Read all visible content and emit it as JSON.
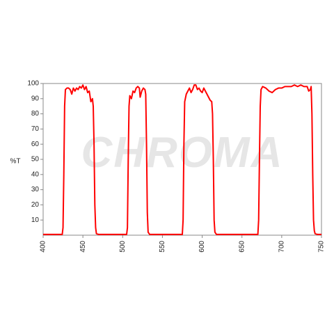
{
  "chart_data": {
    "type": "line",
    "y_label": "%T",
    "watermark": "CHROMA",
    "color": "#ff0000",
    "grid": false,
    "xlim": [
      400,
      750
    ],
    "xticks": [
      400,
      450,
      500,
      550,
      600,
      650,
      700,
      750
    ],
    "ylim": [
      0,
      100
    ],
    "yticks": [
      10,
      20,
      30,
      40,
      50,
      60,
      70,
      80,
      90,
      100
    ],
    "x": [
      400,
      424,
      425,
      426,
      427,
      428,
      430,
      432,
      434,
      436,
      438,
      440,
      442,
      444,
      446,
      448,
      450,
      452,
      454,
      456,
      458,
      460,
      462,
      463,
      464,
      465,
      466,
      467,
      470,
      505,
      506,
      507,
      508,
      509,
      511,
      513,
      515,
      517,
      519,
      521,
      522,
      524,
      526,
      528,
      529,
      530,
      531,
      532,
      534,
      575,
      576,
      577,
      578,
      580,
      582,
      584,
      586,
      588,
      590,
      592,
      594,
      596,
      598,
      600,
      602,
      604,
      606,
      608,
      610,
      612,
      613,
      614,
      615,
      616,
      618,
      670,
      671,
      672,
      673,
      674,
      676,
      680,
      684,
      688,
      692,
      696,
      700,
      704,
      708,
      712,
      716,
      720,
      724,
      728,
      732,
      734,
      736,
      737,
      738,
      739,
      740,
      741,
      742,
      745,
      750
    ],
    "values": [
      0.5,
      0.5,
      5,
      40,
      85,
      96,
      97,
      97,
      96,
      93,
      97,
      95,
      97,
      96,
      98,
      97,
      99,
      96,
      98,
      94,
      95,
      88,
      90,
      85,
      60,
      20,
      5,
      1,
      0.5,
      0.5,
      5,
      50,
      85,
      92,
      90,
      95,
      94,
      97,
      98,
      97,
      91,
      95,
      97,
      96,
      93,
      60,
      15,
      2,
      0.5,
      0.5,
      10,
      60,
      88,
      93,
      95,
      97,
      94,
      96,
      99,
      99,
      96,
      97,
      95,
      94,
      97,
      95,
      93,
      91,
      89,
      88,
      80,
      50,
      10,
      2,
      0.5,
      0.5,
      10,
      50,
      85,
      96,
      98,
      97,
      95,
      94,
      96,
      97,
      97,
      98,
      98,
      98,
      99,
      98,
      99,
      98,
      98,
      95,
      96,
      98,
      80,
      40,
      10,
      3,
      1,
      0.5,
      0.5
    ]
  }
}
